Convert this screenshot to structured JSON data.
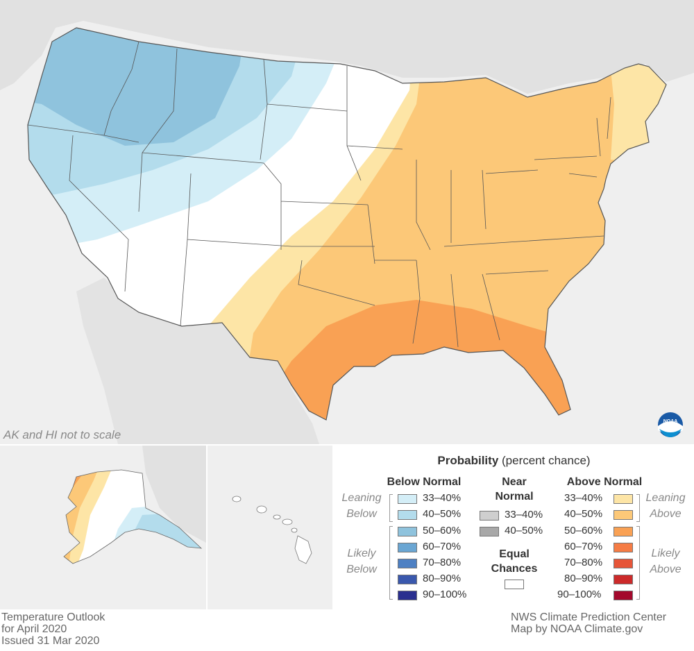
{
  "map": {
    "scale_note": "AK and HI not to scale",
    "logo_text": "NOAA"
  },
  "legend": {
    "title_bold": "Probability",
    "title_rest": " (percent chance)",
    "below_header": "Below Normal",
    "near_header_1": "Near",
    "near_header_2": "Normal",
    "above_header": "Above Normal",
    "equal_1": "Equal",
    "equal_2": "Chances",
    "leaning_below_1": "Leaning",
    "leaning_below_2": "Below",
    "likely_below_1": "Likely",
    "likely_below_2": "Below",
    "leaning_above_1": "Leaning",
    "leaning_above_2": "Above",
    "likely_above_1": "Likely",
    "likely_above_2": "Above",
    "below": [
      {
        "label": "33–40%",
        "color": "#d4eef7"
      },
      {
        "label": "40–50%",
        "color": "#b3dcec"
      },
      {
        "label": "50–60%",
        "color": "#8fc3dd"
      },
      {
        "label": "60–70%",
        "color": "#6aa6d3"
      },
      {
        "label": "70–80%",
        "color": "#4d80c3"
      },
      {
        "label": "80–90%",
        "color": "#3a58ad"
      },
      {
        "label": "90–100%",
        "color": "#2a2f8f"
      }
    ],
    "near": [
      {
        "label": "33–40%",
        "color": "#cfcfcf"
      },
      {
        "label": "40–50%",
        "color": "#a8a8a8"
      }
    ],
    "above": [
      {
        "label": "33–40%",
        "color": "#fde5a6"
      },
      {
        "label": "40–50%",
        "color": "#fcc878"
      },
      {
        "label": "50–60%",
        "color": "#f9a154"
      },
      {
        "label": "60–70%",
        "color": "#f57c45"
      },
      {
        "label": "70–80%",
        "color": "#e65538"
      },
      {
        "label": "80–90%",
        "color": "#cc2a2a"
      },
      {
        "label": "90–100%",
        "color": "#a3082c"
      }
    ]
  },
  "footer": {
    "title_1": "Temperature Outlook",
    "title_2": "for April 2020",
    "title_3": "Issued 31 Mar 2020",
    "credit_1": "NWS Climate Prediction Center",
    "credit_2": "Map by NOAA Climate.gov"
  }
}
